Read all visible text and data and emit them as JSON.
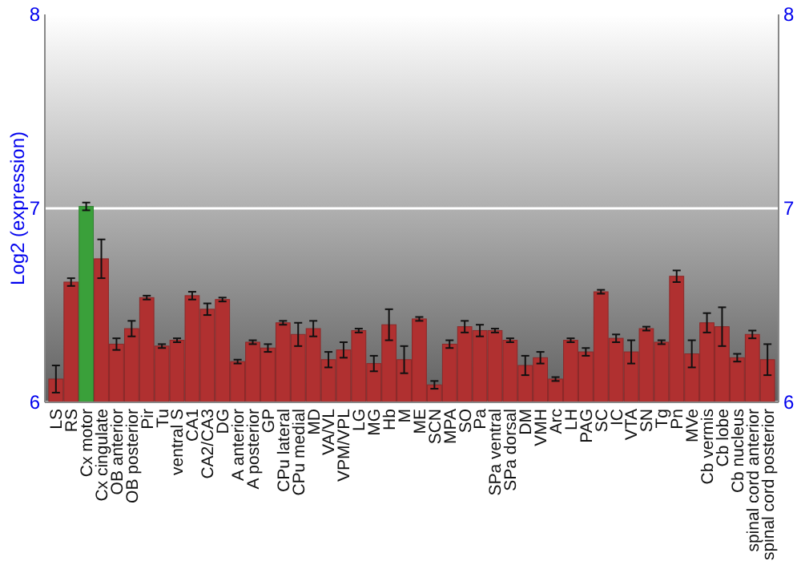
{
  "chart_data": {
    "type": "bar",
    "ylabel": "Log2 (expression)",
    "categories": [
      "LS",
      "RS",
      "Cx motor",
      "Cx cingulate",
      "OB anterior",
      "OB posterior",
      "Pir",
      "Tu",
      "ventral S",
      "CA1",
      "CA2/CA3",
      "DG",
      "A anterior",
      "A posterior",
      "GP",
      "CPu lateral",
      "CPu medial",
      "MD",
      "VA/VL",
      "VPM/VPL",
      "LG",
      "MG",
      "Hb",
      "M",
      "ME",
      "SCN",
      "MPA",
      "SO",
      "Pa",
      "SPa ventral",
      "SPa dorsal",
      "DM",
      "VMH",
      "Arc",
      "LH",
      "PAG",
      "SC",
      "IC",
      "VTA",
      "SN",
      "Tg",
      "Pn",
      "MVe",
      "Cb vermis",
      "Cb lobe",
      "Cb nucleus",
      "spinal cord anterior",
      "spinal cord posterior"
    ],
    "values": [
      6.12,
      6.62,
      7.01,
      6.74,
      6.3,
      6.38,
      6.54,
      6.29,
      6.32,
      6.55,
      6.48,
      6.53,
      6.21,
      6.31,
      6.28,
      6.41,
      6.35,
      6.38,
      6.22,
      6.27,
      6.37,
      6.2,
      6.4,
      6.22,
      6.43,
      6.09,
      6.3,
      6.39,
      6.37,
      6.37,
      6.32,
      6.19,
      6.23,
      6.12,
      6.32,
      6.26,
      6.57,
      6.33,
      6.26,
      6.38,
      6.31,
      6.65,
      6.25,
      6.41,
      6.39,
      6.23,
      6.35,
      6.22
    ],
    "errors": [
      0.07,
      0.02,
      0.02,
      0.1,
      0.03,
      0.04,
      0.01,
      0.01,
      0.01,
      0.02,
      0.03,
      0.01,
      0.01,
      0.01,
      0.02,
      0.01,
      0.06,
      0.04,
      0.04,
      0.04,
      0.01,
      0.04,
      0.08,
      0.07,
      0.01,
      0.02,
      0.02,
      0.03,
      0.03,
      0.01,
      0.01,
      0.05,
      0.03,
      0.01,
      0.01,
      0.02,
      0.01,
      0.02,
      0.06,
      0.01,
      0.01,
      0.03,
      0.07,
      0.05,
      0.1,
      0.02,
      0.02,
      0.08
    ],
    "colors": [
      "#b03030",
      "#b03030",
      "#3aa03a",
      "#b03030",
      "#b03030",
      "#b03030",
      "#b03030",
      "#b03030",
      "#b03030",
      "#b03030",
      "#b03030",
      "#b03030",
      "#b03030",
      "#b03030",
      "#b03030",
      "#b03030",
      "#b03030",
      "#b03030",
      "#b03030",
      "#b03030",
      "#b03030",
      "#b03030",
      "#b03030",
      "#b03030",
      "#b03030",
      "#b03030",
      "#b03030",
      "#b03030",
      "#b03030",
      "#b03030",
      "#b03030",
      "#b03030",
      "#b03030",
      "#b03030",
      "#b03030",
      "#b03030",
      "#b03030",
      "#b03030",
      "#b03030",
      "#b03030",
      "#b03030",
      "#b03030",
      "#b03030",
      "#b03030",
      "#b03030",
      "#b03030",
      "#b03030",
      "#b03030"
    ],
    "ylim": [
      6,
      8
    ],
    "yticks": [
      6,
      7,
      8
    ],
    "y2lim": [
      6,
      8
    ],
    "y2ticks": [
      6,
      7,
      8
    ],
    "grid": "y"
  }
}
